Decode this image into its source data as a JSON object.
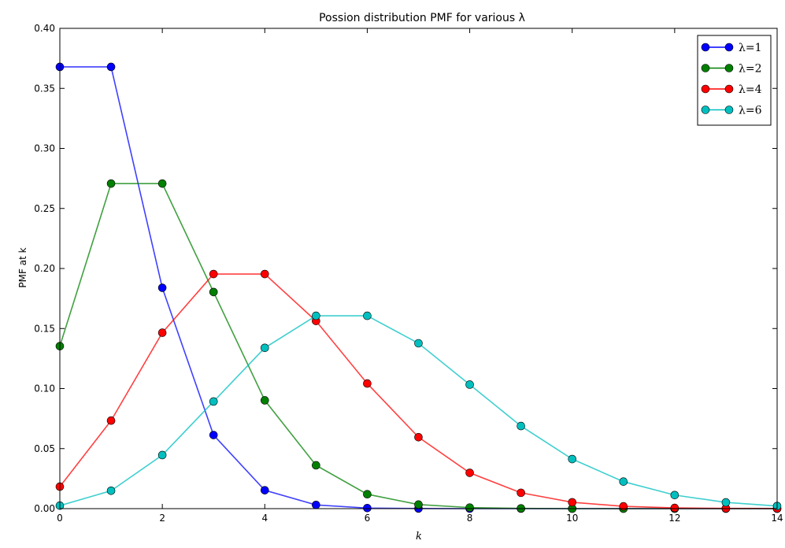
{
  "chart_data": {
    "type": "line",
    "title": "Possion distribution PMF for various λ",
    "xlabel": "k",
    "ylabel": "PMF at k",
    "xlim": [
      0,
      14
    ],
    "ylim": [
      0,
      0.4
    ],
    "x_ticks": [
      "0",
      "2",
      "4",
      "6",
      "8",
      "10",
      "12",
      "14"
    ],
    "y_ticks": [
      "0.00",
      "0.05",
      "0.10",
      "0.15",
      "0.20",
      "0.25",
      "0.30",
      "0.35",
      "0.40"
    ],
    "grid": false,
    "legend_position": "top-right",
    "x": [
      0,
      1,
      2,
      3,
      4,
      5,
      6,
      7,
      8,
      9,
      10,
      11,
      12,
      13,
      14
    ],
    "series": [
      {
        "name": "λ=1",
        "color": "#0000ff",
        "values": [
          0.3679,
          0.3679,
          0.1839,
          0.0613,
          0.0153,
          0.0031,
          0.0005,
          0.0001,
          0.0,
          0.0,
          0.0,
          0.0,
          0.0,
          0.0,
          0.0
        ]
      },
      {
        "name": "λ=2",
        "color": "#008000",
        "values": [
          0.1353,
          0.2707,
          0.2707,
          0.1804,
          0.0902,
          0.0361,
          0.012,
          0.0034,
          0.0009,
          0.0002,
          0.0,
          0.0,
          0.0,
          0.0,
          0.0
        ]
      },
      {
        "name": "λ=4",
        "color": "#ff0000",
        "values": [
          0.0183,
          0.0733,
          0.1465,
          0.1954,
          0.1954,
          0.1563,
          0.1042,
          0.0595,
          0.0298,
          0.0132,
          0.0053,
          0.0019,
          0.0006,
          0.0002,
          0.0001
        ]
      },
      {
        "name": "λ=6",
        "color": "#00bfbf",
        "values": [
          0.0025,
          0.0149,
          0.0446,
          0.0892,
          0.1339,
          0.1606,
          0.1606,
          0.1377,
          0.1033,
          0.0688,
          0.0413,
          0.0225,
          0.0113,
          0.0052,
          0.0022
        ]
      }
    ]
  }
}
